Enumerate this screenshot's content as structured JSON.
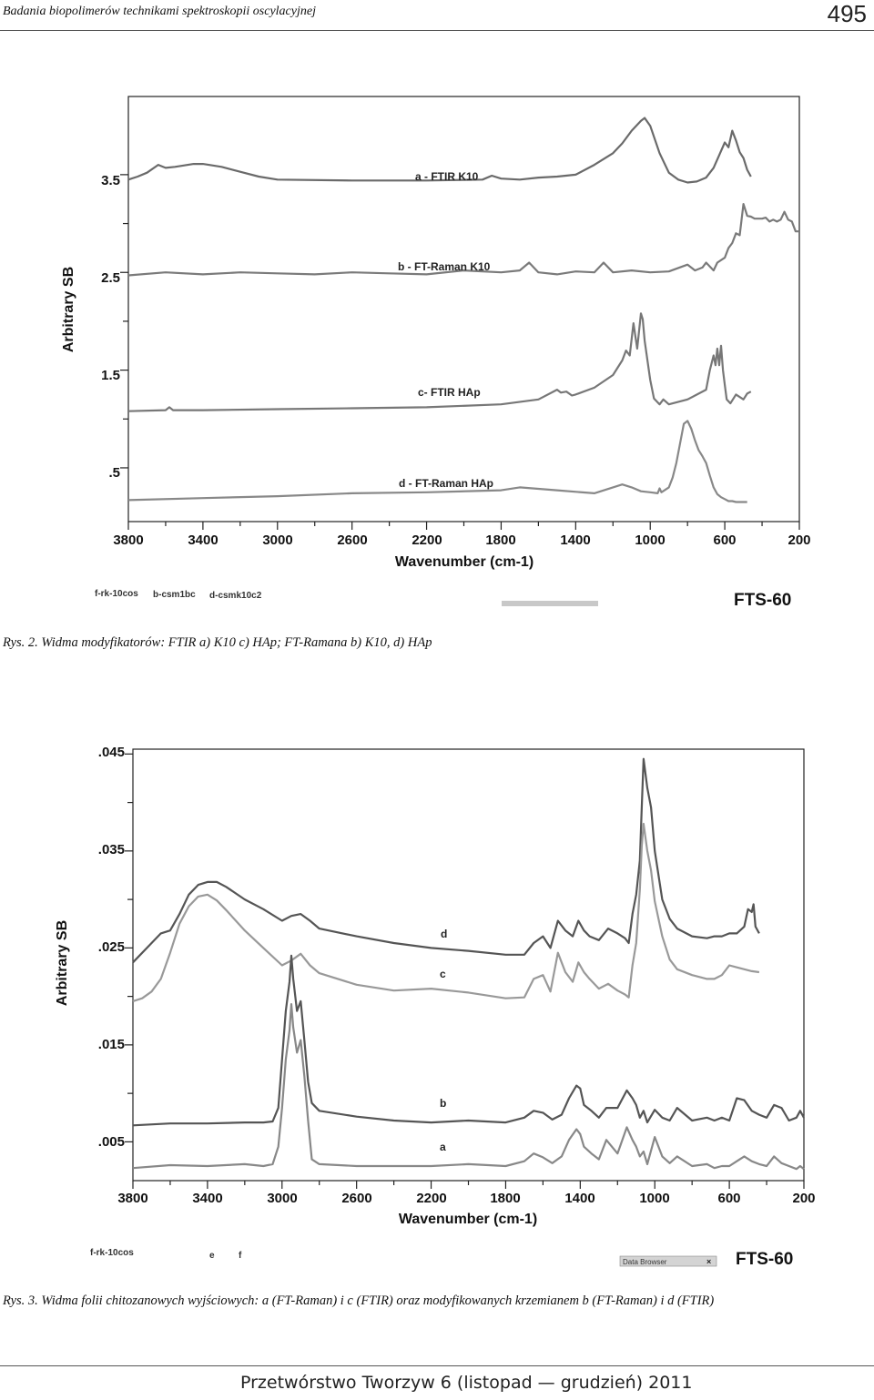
{
  "header": {
    "title": "Badania biopolimerów technikami spektroskopii oscylacyjnej",
    "page_number": "495"
  },
  "figures": [
    {
      "caption": "Rys. 2. Widma modyfikatorów: FTIR a) K10 c) HAp; FT-Ramana b) K10, d) HAp",
      "ylabel": "Arbitrary SB",
      "y_tick_labels": [
        "3.5",
        "2.5",
        "1.5",
        ".5"
      ],
      "xlabel": "Wavenumber (cm-1)",
      "x_tick_labels": [
        "3800",
        "3400",
        "3000",
        "2600",
        "2200",
        "1800",
        "1400",
        "1000",
        "600",
        "200"
      ],
      "series_labels": [
        "a - FTIR K10",
        "b - FT-Raman K10",
        "c- FTIR  HAp",
        "d - FT-Raman HAp"
      ],
      "footnotes": [
        "f-rk-10cos",
        "b-csm1bc",
        "d-csmk10c2"
      ],
      "instrument": "FTS-60"
    },
    {
      "caption": "Rys. 3. Widma folii chitozanowych wyjściowych: a (FT-Raman) i c (FTIR) oraz modyfikowanych krzemianem b (FT-Raman) i d (FTIR)",
      "ylabel": "Arbitrary SB",
      "y_tick_labels": [
        ".045",
        ".035",
        ".025",
        ".015",
        ".005"
      ],
      "xlabel": "Wavenumber (cm-1)",
      "x_tick_labels": [
        "3800",
        "3400",
        "3000",
        "2600",
        "2200",
        "1800",
        "1400",
        "1000",
        "600",
        "200"
      ],
      "series_labels": [
        "d",
        "c",
        "b",
        "a"
      ],
      "footnotes": [
        "f-rk-10cos",
        "e",
        "f"
      ],
      "data_browser": "Data Browser",
      "instrument": "FTS-60"
    }
  ],
  "chart_data": [
    {
      "type": "line",
      "title": "",
      "xlabel": "Wavenumber (cm-1)",
      "ylabel": "Arbitrary SB",
      "xlim": [
        3800,
        200
      ],
      "ylim": [
        -0.05,
        4.3
      ],
      "x_reversed": true,
      "grid": false,
      "series": [
        {
          "name": "a - FTIR K10",
          "color": "#6a6a6a",
          "x": [
            3800,
            3750,
            3700,
            3640,
            3600,
            3550,
            3450,
            3400,
            3300,
            3200,
            3100,
            3000,
            2600,
            2200,
            1900,
            1850,
            1800,
            1700,
            1600,
            1500,
            1400,
            1300,
            1200,
            1150,
            1100,
            1050,
            1030,
            1000,
            950,
            900,
            850,
            800,
            750,
            700,
            660,
            630,
            600,
            580,
            560,
            540,
            520,
            500,
            480,
            460
          ],
          "y": [
            3.45,
            3.48,
            3.52,
            3.6,
            3.57,
            3.58,
            3.61,
            3.61,
            3.58,
            3.53,
            3.48,
            3.45,
            3.44,
            3.44,
            3.45,
            3.49,
            3.46,
            3.45,
            3.47,
            3.48,
            3.5,
            3.6,
            3.72,
            3.82,
            3.95,
            4.05,
            4.08,
            4.0,
            3.72,
            3.52,
            3.45,
            3.42,
            3.43,
            3.47,
            3.57,
            3.7,
            3.83,
            3.78,
            3.95,
            3.85,
            3.73,
            3.67,
            3.55,
            3.48
          ]
        },
        {
          "name": "b - FT-Raman K10",
          "color": "#7a7a7a",
          "x": [
            3800,
            3600,
            3400,
            3200,
            3000,
            2800,
            2600,
            2400,
            2200,
            2000,
            1800,
            1700,
            1650,
            1600,
            1500,
            1400,
            1300,
            1250,
            1200,
            1100,
            1000,
            900,
            800,
            760,
            720,
            700,
            660,
            640,
            600,
            580,
            560,
            540,
            520,
            500,
            480,
            460,
            440,
            420,
            400,
            380,
            360,
            340,
            320,
            300,
            280,
            260,
            240,
            220,
            200
          ],
          "y": [
            2.47,
            2.5,
            2.48,
            2.5,
            2.49,
            2.48,
            2.5,
            2.49,
            2.48,
            2.52,
            2.5,
            2.52,
            2.6,
            2.5,
            2.48,
            2.51,
            2.5,
            2.6,
            2.5,
            2.52,
            2.5,
            2.51,
            2.58,
            2.52,
            2.55,
            2.6,
            2.52,
            2.6,
            2.65,
            2.75,
            2.8,
            2.9,
            2.88,
            3.2,
            3.08,
            3.07,
            3.05,
            3.05,
            3.05,
            3.06,
            3.02,
            3.04,
            3.02,
            3.04,
            3.12,
            3.04,
            3.02,
            2.92,
            2.92
          ]
        },
        {
          "name": "c- FTIR  HAp",
          "color": "#777777",
          "x": [
            3800,
            3600,
            3580,
            3560,
            3400,
            3000,
            2600,
            2200,
            1800,
            1600,
            1500,
            1480,
            1450,
            1420,
            1400,
            1300,
            1200,
            1150,
            1130,
            1110,
            1090,
            1070,
            1050,
            1040,
            1030,
            1000,
            980,
            950,
            930,
            900,
            800,
            700,
            680,
            660,
            650,
            640,
            630,
            620,
            610,
            600,
            590,
            570,
            540,
            500,
            480,
            460
          ],
          "y": [
            1.08,
            1.09,
            1.12,
            1.09,
            1.09,
            1.1,
            1.11,
            1.12,
            1.15,
            1.2,
            1.3,
            1.27,
            1.28,
            1.24,
            1.25,
            1.32,
            1.45,
            1.6,
            1.7,
            1.65,
            1.98,
            1.72,
            2.08,
            2.02,
            1.8,
            1.4,
            1.21,
            1.15,
            1.2,
            1.15,
            1.2,
            1.3,
            1.5,
            1.65,
            1.55,
            1.72,
            1.55,
            1.75,
            1.5,
            1.35,
            1.2,
            1.16,
            1.25,
            1.2,
            1.26,
            1.28
          ]
        },
        {
          "name": "d - FT-Raman HAp",
          "color": "#888888",
          "x": [
            3800,
            3400,
            3000,
            2600,
            2200,
            1800,
            1700,
            1500,
            1300,
            1200,
            1150,
            1100,
            1050,
            1000,
            960,
            950,
            940,
            900,
            880,
            860,
            840,
            820,
            800,
            780,
            760,
            740,
            720,
            700,
            680,
            660,
            640,
            620,
            600,
            580,
            560,
            540,
            520,
            500,
            480
          ],
          "y": [
            0.17,
            0.19,
            0.21,
            0.24,
            0.25,
            0.27,
            0.3,
            0.27,
            0.24,
            0.3,
            0.33,
            0.3,
            0.26,
            0.25,
            0.24,
            0.29,
            0.25,
            0.3,
            0.4,
            0.55,
            0.75,
            0.95,
            0.98,
            0.9,
            0.78,
            0.68,
            0.62,
            0.55,
            0.42,
            0.3,
            0.23,
            0.2,
            0.18,
            0.16,
            0.16,
            0.15,
            0.15,
            0.15,
            0.15
          ]
        }
      ]
    },
    {
      "type": "line",
      "title": "",
      "xlabel": "Wavenumber (cm-1)",
      "ylabel": "Arbitrary SB",
      "xlim": [
        3800,
        200
      ],
      "ylim": [
        0.001,
        0.0455
      ],
      "x_reversed": true,
      "grid": false,
      "series": [
        {
          "name": "d",
          "color": "#555555",
          "x": [
            3800,
            3700,
            3650,
            3600,
            3550,
            3500,
            3450,
            3400,
            3350,
            3300,
            3200,
            3100,
            3000,
            2950,
            2900,
            2850,
            2800,
            2600,
            2400,
            2200,
            2000,
            1800,
            1700,
            1650,
            1600,
            1560,
            1520,
            1480,
            1440,
            1410,
            1380,
            1350,
            1300,
            1250,
            1200,
            1160,
            1140,
            1120,
            1100,
            1080,
            1070,
            1060,
            1040,
            1020,
            1000,
            960,
            920,
            880,
            800,
            720,
            680,
            640,
            600,
            560,
            520,
            500,
            480,
            470,
            460,
            440
          ],
          "y": [
            0.0235,
            0.0255,
            0.0265,
            0.0268,
            0.0285,
            0.0305,
            0.0315,
            0.0318,
            0.0318,
            0.0313,
            0.03,
            0.029,
            0.0278,
            0.0283,
            0.0285,
            0.0278,
            0.027,
            0.0262,
            0.0255,
            0.025,
            0.0247,
            0.0243,
            0.0243,
            0.0255,
            0.0262,
            0.025,
            0.0278,
            0.0268,
            0.0262,
            0.0278,
            0.0268,
            0.0262,
            0.0258,
            0.027,
            0.0265,
            0.026,
            0.0255,
            0.0285,
            0.0305,
            0.034,
            0.0395,
            0.0445,
            0.0415,
            0.0395,
            0.035,
            0.03,
            0.028,
            0.027,
            0.0262,
            0.026,
            0.0262,
            0.0262,
            0.0265,
            0.0265,
            0.0272,
            0.029,
            0.0287,
            0.0295,
            0.0272,
            0.0265
          ]
        },
        {
          "name": "c",
          "color": "#999999",
          "x": [
            3800,
            3750,
            3700,
            3650,
            3600,
            3550,
            3500,
            3450,
            3400,
            3350,
            3300,
            3200,
            3100,
            3000,
            2950,
            2900,
            2850,
            2800,
            2600,
            2400,
            2200,
            2000,
            1800,
            1700,
            1650,
            1600,
            1560,
            1520,
            1480,
            1440,
            1410,
            1380,
            1350,
            1300,
            1250,
            1200,
            1160,
            1140,
            1120,
            1100,
            1080,
            1070,
            1060,
            1040,
            1020,
            1000,
            960,
            920,
            880,
            800,
            720,
            680,
            640,
            600,
            560,
            520,
            480,
            440
          ],
          "y": [
            0.0195,
            0.0198,
            0.0205,
            0.0218,
            0.0245,
            0.0275,
            0.0293,
            0.0303,
            0.0305,
            0.0299,
            0.0289,
            0.0268,
            0.025,
            0.0232,
            0.0237,
            0.0244,
            0.0232,
            0.0224,
            0.0212,
            0.0206,
            0.0208,
            0.0204,
            0.0198,
            0.0199,
            0.0218,
            0.0222,
            0.0205,
            0.0245,
            0.0225,
            0.0215,
            0.0235,
            0.0225,
            0.0218,
            0.0208,
            0.0213,
            0.0206,
            0.0202,
            0.0199,
            0.0232,
            0.0255,
            0.031,
            0.0355,
            0.0378,
            0.035,
            0.033,
            0.0298,
            0.0262,
            0.0238,
            0.0228,
            0.0222,
            0.0218,
            0.0218,
            0.0222,
            0.0232,
            0.023,
            0.0228,
            0.0226,
            0.0225
          ]
        },
        {
          "name": "b",
          "color": "#555555",
          "x": [
            3800,
            3600,
            3400,
            3200,
            3100,
            3050,
            3020,
            3000,
            2980,
            2960,
            2950,
            2940,
            2920,
            2900,
            2880,
            2860,
            2840,
            2800,
            2600,
            2400,
            2200,
            2000,
            1800,
            1700,
            1650,
            1600,
            1550,
            1500,
            1460,
            1420,
            1400,
            1380,
            1340,
            1300,
            1260,
            1200,
            1150,
            1120,
            1100,
            1080,
            1060,
            1040,
            1000,
            960,
            920,
            880,
            800,
            720,
            680,
            640,
            600,
            560,
            520,
            480,
            440,
            400,
            360,
            320,
            280,
            240,
            220,
            200
          ],
          "y": [
            0.0067,
            0.0069,
            0.0069,
            0.007,
            0.007,
            0.0071,
            0.0085,
            0.0135,
            0.0185,
            0.0215,
            0.0242,
            0.0218,
            0.0185,
            0.0195,
            0.0155,
            0.0112,
            0.009,
            0.0082,
            0.0076,
            0.0072,
            0.007,
            0.0072,
            0.007,
            0.0075,
            0.0082,
            0.008,
            0.0073,
            0.0078,
            0.0095,
            0.0108,
            0.0105,
            0.0088,
            0.0082,
            0.0075,
            0.0085,
            0.0085,
            0.0103,
            0.0095,
            0.0088,
            0.0075,
            0.0082,
            0.007,
            0.0083,
            0.0075,
            0.0072,
            0.0085,
            0.0072,
            0.0075,
            0.0072,
            0.0075,
            0.0072,
            0.0095,
            0.0093,
            0.0082,
            0.0078,
            0.0075,
            0.0088,
            0.0085,
            0.0072,
            0.0075,
            0.0082,
            0.0075
          ]
        },
        {
          "name": "a",
          "color": "#888888",
          "x": [
            3800,
            3600,
            3400,
            3200,
            3100,
            3050,
            3020,
            3000,
            2980,
            2960,
            2950,
            2940,
            2920,
            2900,
            2880,
            2860,
            2840,
            2800,
            2600,
            2400,
            2200,
            2000,
            1800,
            1700,
            1650,
            1600,
            1550,
            1500,
            1460,
            1420,
            1400,
            1380,
            1340,
            1300,
            1260,
            1200,
            1150,
            1120,
            1100,
            1080,
            1060,
            1040,
            1000,
            960,
            920,
            880,
            800,
            720,
            680,
            640,
            600,
            560,
            520,
            480,
            440,
            400,
            360,
            320,
            280,
            240,
            220,
            200
          ],
          "y": [
            0.0023,
            0.0026,
            0.0025,
            0.0027,
            0.0025,
            0.0027,
            0.0045,
            0.0085,
            0.0135,
            0.0165,
            0.0192,
            0.0168,
            0.0142,
            0.0155,
            0.0118,
            0.0072,
            0.0032,
            0.0027,
            0.0025,
            0.0025,
            0.0025,
            0.0027,
            0.0025,
            0.003,
            0.0038,
            0.0034,
            0.0028,
            0.0035,
            0.0052,
            0.0063,
            0.0058,
            0.0045,
            0.0038,
            0.0032,
            0.0052,
            0.0038,
            0.0065,
            0.0052,
            0.0045,
            0.0035,
            0.004,
            0.0027,
            0.0055,
            0.0035,
            0.0028,
            0.0035,
            0.0025,
            0.0027,
            0.0023,
            0.0025,
            0.0025,
            0.003,
            0.0035,
            0.003,
            0.0027,
            0.0025,
            0.0035,
            0.0028,
            0.0025,
            0.0022,
            0.0025,
            0.0022
          ]
        }
      ]
    }
  ]
}
